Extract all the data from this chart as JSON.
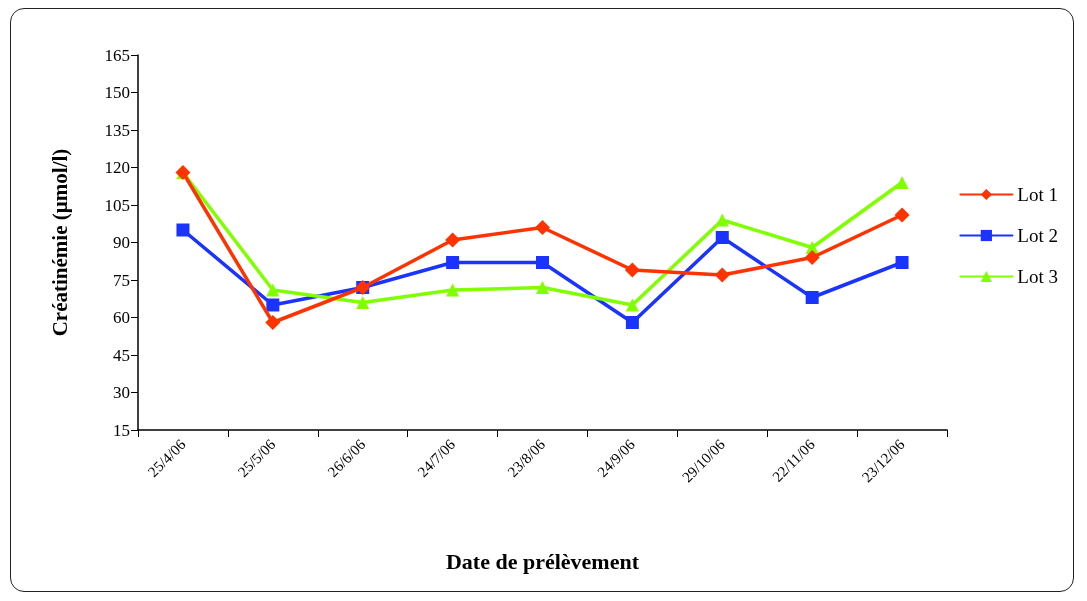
{
  "chart_data": {
    "type": "line",
    "xlabel": "Date de prélèvement",
    "ylabel": "Créatinémie (µmol/l)",
    "categories": [
      "25/4/06",
      "25/5/06",
      "26/6/06",
      "24/7/06",
      "23/8/06",
      "24/9/06",
      "29/10/06",
      "22/11/06",
      "23/12/06"
    ],
    "series": [
      {
        "name": "Lot 1",
        "color": "#ff3300",
        "marker": "diamond",
        "values": [
          118,
          58,
          72,
          91,
          96,
          79,
          77,
          84,
          101
        ]
      },
      {
        "name": "Lot 2",
        "color": "#1a33ff",
        "marker": "square",
        "values": [
          95,
          65,
          72,
          82,
          82,
          58,
          92,
          68,
          82
        ]
      },
      {
        "name": "Lot 3",
        "color": "#80ff00",
        "marker": "triangle",
        "values": [
          118,
          71,
          66,
          71,
          72,
          65,
          99,
          88,
          114
        ]
      }
    ],
    "ylim": [
      15,
      165
    ],
    "yticks": [
      15,
      30,
      45,
      60,
      75,
      90,
      105,
      120,
      135,
      150,
      165
    ],
    "grid": false,
    "legend": "right"
  }
}
